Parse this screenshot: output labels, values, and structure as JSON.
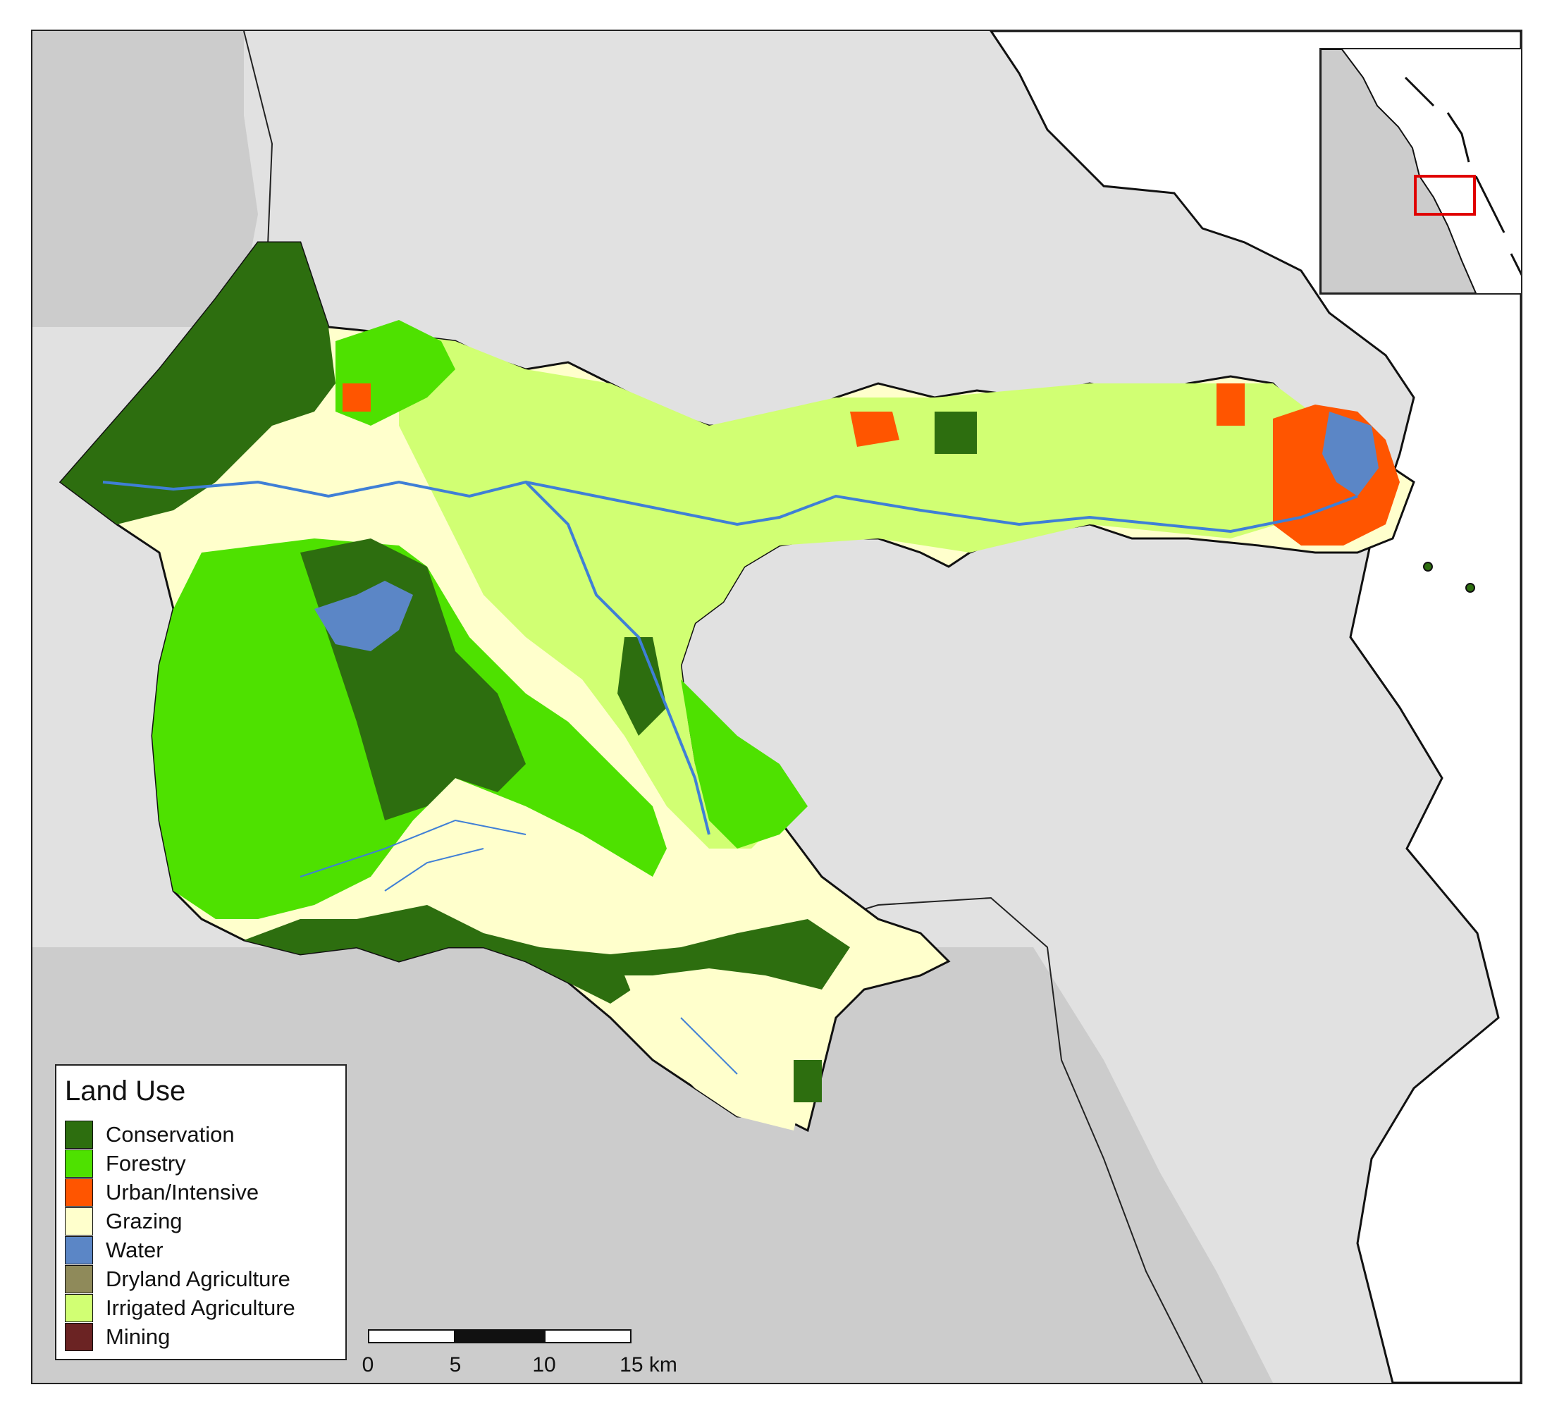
{
  "legend": {
    "title": "Land Use",
    "items": [
      {
        "label": "Conservation",
        "color": "#2d6e0f",
        "icon": "conservation-swatch"
      },
      {
        "label": "Forestry",
        "color": "#4ee100",
        "icon": "forestry-swatch"
      },
      {
        "label": "Urban/Intensive",
        "color": "#ff5500",
        "icon": "urban-intensive-swatch"
      },
      {
        "label": "Grazing",
        "color": "#ffffcc",
        "icon": "grazing-swatch"
      },
      {
        "label": "Water",
        "color": "#5b86c6",
        "icon": "water-swatch"
      },
      {
        "label": "Dryland Agriculture",
        "color": "#8f8a5a",
        "icon": "dryland-agriculture-swatch"
      },
      {
        "label": "Irrigated Agriculture",
        "color": "#d1ff73",
        "icon": "irrigated-agriculture-swatch"
      },
      {
        "label": "Mining",
        "color": "#6b2323",
        "icon": "mining-swatch"
      }
    ]
  },
  "scale_bar": {
    "labels": [
      "0",
      "5",
      "10",
      "15 km"
    ]
  },
  "colors": {
    "background_land": "#e1e1e1",
    "background_land_dark": "#cccccc",
    "sea": "#ffffff",
    "river": "#3f7fd6",
    "inset_highlight": "#e00000"
  }
}
